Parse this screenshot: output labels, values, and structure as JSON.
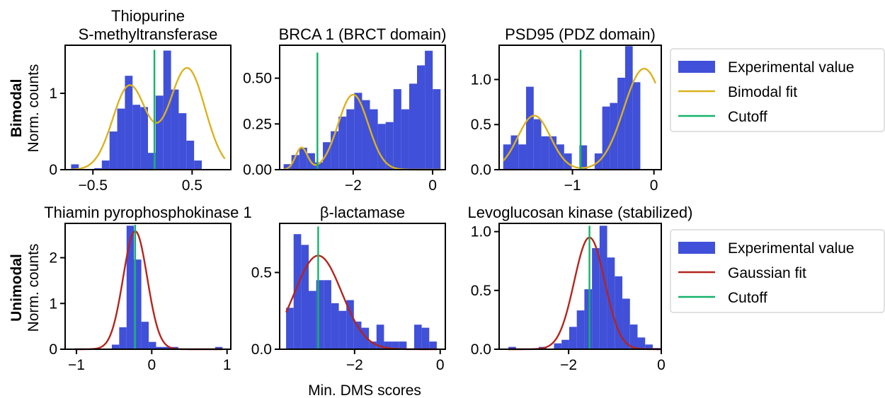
{
  "colors": {
    "bar": "#4050d8",
    "bimodal": "#dbb21f",
    "gaussian": "#b3251f",
    "cutoff": "#13b36a"
  },
  "xlabel": "Min. DMS scores",
  "rows": [
    {
      "bold": "Bimodal",
      "normal": "Norm. counts"
    },
    {
      "bold": "Unimodal",
      "normal": "Norm. counts"
    }
  ],
  "legends": [
    {
      "entries": [
        "Experimental value",
        "Bimodal fit",
        "Cutoff"
      ]
    },
    {
      "entries": [
        "Experimental value",
        "Gaussian fit",
        "Cutoff"
      ]
    }
  ],
  "chart_data": [
    {
      "type": "bar",
      "title": [
        "Thiopurine",
        "S-methyltransferase"
      ],
      "fit": "bimodal",
      "xlim": [
        -0.78,
        0.89
      ],
      "ylim": [
        0,
        1.63
      ],
      "xticks": [
        -0.5,
        0.5
      ],
      "xticklabels": [
        "−0.5",
        "0.5"
      ],
      "yticks": [
        0,
        1
      ],
      "yticklabels": [
        "0",
        "1"
      ],
      "bin_start": -0.72,
      "bin_width": 0.0775,
      "values": [
        0.07,
        0,
        0,
        0.02,
        0.12,
        0.5,
        0.8,
        1.23,
        0.85,
        0.82,
        0.22,
        0.97,
        1.56,
        1.05,
        0.74,
        0.38,
        0.12,
        0.0,
        0.0,
        0.0
      ],
      "fit_curve": {
        "mu1": -0.13,
        "s1": 0.17,
        "a1": 1.1,
        "mu2": 0.45,
        "s2": 0.18,
        "a2": 1.33
      },
      "cutoff": 0.12,
      "cutoff_top": 1.57
    },
    {
      "type": "bar",
      "title": [
        "BRCA 1 (BRCT domain)"
      ],
      "fit": "bimodal",
      "xlim": [
        -3.85,
        0.32
      ],
      "ylim": [
        0,
        0.68
      ],
      "xticks": [
        -2,
        0
      ],
      "xticklabels": [
        "−2",
        "0"
      ],
      "yticks": [
        0,
        0.25,
        0.5
      ],
      "yticklabels": [
        "0.00",
        "0.25",
        "0.50"
      ],
      "bin_start": -3.75,
      "bin_width": 0.1975,
      "values": [
        0.03,
        0.08,
        0.12,
        0.09,
        0.04,
        0.15,
        0.21,
        0.29,
        0.33,
        0.42,
        0.38,
        0.33,
        0.25,
        0.26,
        0.44,
        0.33,
        0.47,
        0.57,
        0.65,
        0.44
      ],
      "fit_curve": {
        "mu1": -3.3,
        "s1": 0.15,
        "a1": 0.12,
        "mu2": -2.0,
        "s2": 0.38,
        "a2": 0.41
      },
      "cutoff": -2.9,
      "cutoff_top": 0.64
    },
    {
      "type": "bar",
      "title": [
        "PSD95 (PDZ domain)"
      ],
      "fit": "bimodal",
      "xlim": [
        -1.9,
        0.09
      ],
      "ylim": [
        0,
        1.38
      ],
      "xticks": [
        -1,
        0
      ],
      "xticklabels": [
        "−1",
        "0"
      ],
      "yticks": [
        0,
        0.5,
        1.0
      ],
      "yticklabels": [
        "0.0",
        "0.5",
        "1.0"
      ],
      "bin_start": -1.85,
      "bin_width": 0.0935,
      "values": [
        0.28,
        0.38,
        0.28,
        0.92,
        0.56,
        0.37,
        0.37,
        0.28,
        0.18,
        0.0,
        0.27,
        0.0,
        0.18,
        0.7,
        0.74,
        1.02,
        1.37,
        0.97,
        0.0,
        0.0
      ],
      "fit_curve": {
        "mu1": -1.47,
        "s1": 0.2,
        "a1": 0.6,
        "mu2": -0.12,
        "s2": 0.25,
        "a2": 1.12
      },
      "cutoff": -0.9,
      "cutoff_top": 1.33
    },
    {
      "type": "bar",
      "title": [
        "Thiamin pyrophosphokinase 1"
      ],
      "fit": "gaussian",
      "xlim": [
        -1.15,
        1.05
      ],
      "ylim": [
        0,
        2.75
      ],
      "xticks": [
        -1,
        0,
        1
      ],
      "xticklabels": [
        "−1",
        "0",
        "1"
      ],
      "yticks": [
        0,
        1,
        2
      ],
      "yticklabels": [
        "0",
        "1",
        "2"
      ],
      "bin_start": -1.02,
      "bin_width": 0.098,
      "values": [
        0.0,
        0.0,
        0.0,
        0.0,
        0.0,
        0.1,
        0.48,
        2.7,
        1.96,
        0.6,
        0.16,
        0.05,
        0.05,
        0.05,
        0.0,
        0.0,
        0.0,
        0.0,
        0.0,
        0.05
      ],
      "fit_curve": {
        "mu": -0.22,
        "s": 0.16,
        "a": 2.58
      },
      "cutoff": -0.22,
      "cutoff_top": 2.72
    },
    {
      "type": "bar",
      "title": [
        "β-lactamase"
      ],
      "fit": "gaussian",
      "xlim": [
        -3.75,
        0.12
      ],
      "ylim": [
        0,
        0.82
      ],
      "xticks": [
        -2,
        0
      ],
      "xticklabels": [
        "−2",
        "0"
      ],
      "yticks": [
        0,
        0.5
      ],
      "yticklabels": [
        "0.0",
        "0.5"
      ],
      "bin_start": -3.6,
      "bin_width": 0.176,
      "values": [
        0.27,
        0.75,
        0.68,
        0.38,
        0.45,
        0.45,
        0.3,
        0.25,
        0.32,
        0.18,
        0.14,
        0.05,
        0.16,
        0.05,
        0.05,
        0.05,
        0.0,
        0.16,
        0.14,
        0.05
      ],
      "fit_curve": {
        "mu": -2.85,
        "s": 0.55,
        "a": 0.61
      },
      "cutoff": -2.85,
      "cutoff_top": 0.8
    },
    {
      "type": "bar",
      "title": [
        "Levoglucosan kinase (stabilized)"
      ],
      "fit": "gaussian",
      "xlim": [
        -3.5,
        0.0
      ],
      "ylim": [
        0,
        1.07
      ],
      "xticks": [
        -2,
        0
      ],
      "xticklabels": [
        "−2",
        "0"
      ],
      "yticks": [
        0,
        0.5,
        1.0
      ],
      "yticklabels": [
        "0.0",
        "0.5",
        "1.0"
      ],
      "bin_start": -3.3,
      "bin_width": 0.164,
      "values": [
        0.02,
        0.0,
        0.0,
        0.0,
        0.02,
        0.0,
        0.05,
        0.08,
        0.19,
        0.33,
        0.51,
        0.86,
        1.05,
        0.78,
        0.62,
        0.43,
        0.21,
        0.1,
        0.04,
        0.01
      ],
      "fit_curve": {
        "mu": -1.55,
        "s": 0.33,
        "a": 0.95
      },
      "cutoff": -1.55,
      "cutoff_top": 1.05
    }
  ]
}
